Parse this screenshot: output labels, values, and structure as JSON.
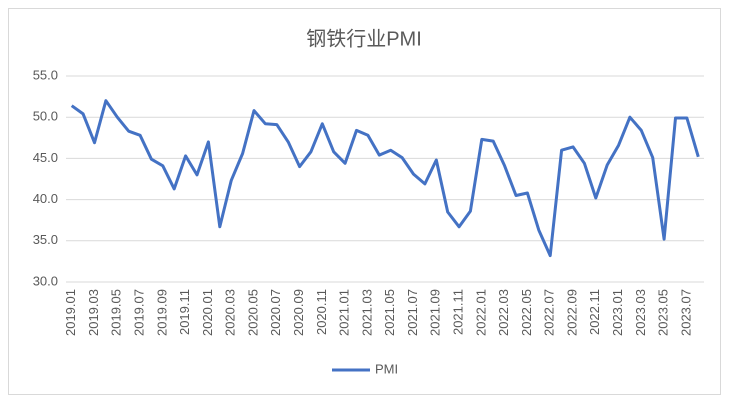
{
  "chart_data": {
    "type": "line",
    "title": "钢铁行业PMI",
    "categories": [
      "2019.01",
      null,
      "2019.03",
      null,
      "2019.05",
      null,
      "2019.07",
      null,
      "2019.09",
      null,
      "2019.11",
      null,
      "2020.01",
      null,
      "2020.03",
      null,
      "2020.05",
      null,
      "2020.07",
      null,
      "2020.09",
      null,
      "2020.11",
      null,
      "2021.01",
      null,
      "2021.03",
      null,
      "2021.05",
      null,
      "2021.07",
      null,
      "2021.09",
      null,
      "2021.11",
      null,
      "2022.01",
      null,
      "2022.03",
      null,
      "2022.05",
      null,
      "2022.07",
      null,
      "2022.09",
      null,
      "2022.11",
      null,
      "2023.01",
      null,
      "2023.03",
      null,
      "2023.05",
      null,
      "2023.07",
      null
    ],
    "series": [
      {
        "name": "PMI",
        "color": "#4472c4",
        "values": [
          51.4,
          50.4,
          46.9,
          52.0,
          50.0,
          48.3,
          47.8,
          44.9,
          44.1,
          41.3,
          45.3,
          43.0,
          47.0,
          36.7,
          42.3,
          45.6,
          50.8,
          49.2,
          49.1,
          47.0,
          44.0,
          45.8,
          49.2,
          45.8,
          44.4,
          48.4,
          47.8,
          45.4,
          46.0,
          45.1,
          43.1,
          41.9,
          44.8,
          38.5,
          36.7,
          38.6,
          47.3,
          47.1,
          44.1,
          40.5,
          40.8,
          36.3,
          33.2,
          46.0,
          46.4,
          44.4,
          40.2,
          44.2,
          46.6,
          50.0,
          48.4,
          45.1,
          35.2,
          49.9,
          49.9,
          45.2
        ]
      }
    ],
    "ylim": [
      30,
      55
    ],
    "yticks": [
      {
        "value": 30,
        "label": "30.0"
      },
      {
        "value": 35,
        "label": "35.0"
      },
      {
        "value": 40,
        "label": "40.0"
      },
      {
        "value": 45,
        "label": "45.0"
      },
      {
        "value": 50,
        "label": "50.0"
      },
      {
        "value": 55,
        "label": "55.0"
      }
    ],
    "grid": true,
    "legend": "bottom"
  }
}
